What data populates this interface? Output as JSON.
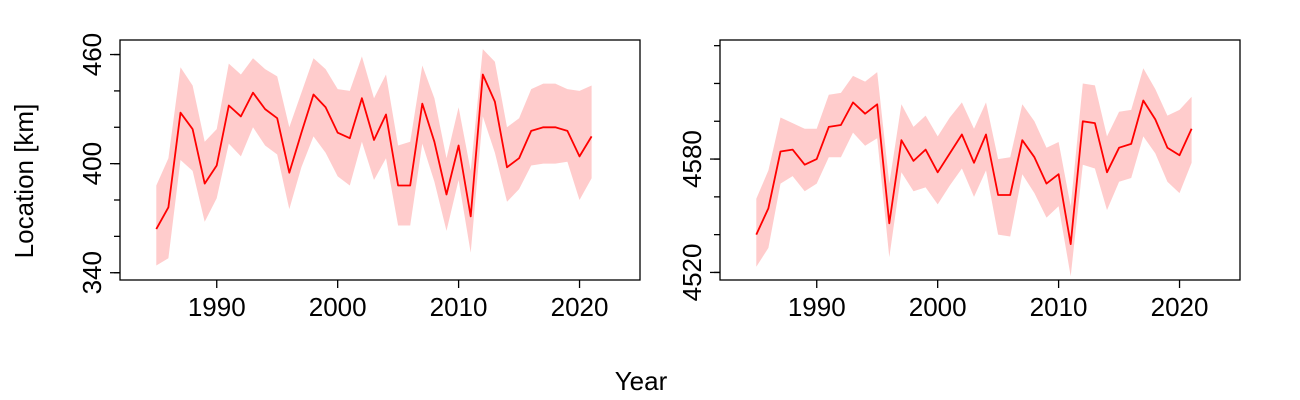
{
  "figure": {
    "ylabel": "Location [km]",
    "xlabel": "Year"
  },
  "colors": {
    "line": "#ff0000",
    "band": "#ffcccc",
    "axis": "#000000"
  },
  "chart_data": [
    {
      "type": "line",
      "x": [
        1985,
        1986,
        1987,
        1988,
        1989,
        1990,
        1991,
        1992,
        1993,
        1994,
        1995,
        1996,
        1997,
        1998,
        1999,
        2000,
        2001,
        2002,
        2003,
        2004,
        2005,
        2006,
        2007,
        2008,
        2009,
        2010,
        2011,
        2012,
        2013,
        2014,
        2015,
        2016,
        2017,
        2018,
        2019,
        2020,
        2021
      ],
      "series": [
        {
          "values": [
            364,
            376,
            428,
            419,
            389,
            399,
            432,
            426,
            439,
            430,
            425,
            395,
            417,
            438,
            431,
            417,
            414,
            436,
            413,
            427,
            388,
            388,
            433,
            412,
            383,
            410,
            371,
            449,
            434,
            398,
            403,
            418,
            420,
            420,
            418,
            404,
            415
          ],
          "lower": [
            344,
            348,
            402,
            396,
            368,
            381,
            411,
            404,
            420,
            410,
            405,
            375,
            398,
            415,
            406,
            393,
            388,
            412,
            391,
            403,
            366,
            366,
            411,
            390,
            363,
            391,
            351,
            426,
            406,
            379,
            386,
            399,
            400,
            400,
            401,
            380,
            392
          ],
          "upper": [
            388,
            403,
            453,
            443,
            412,
            419,
            455,
            449,
            458,
            452,
            448,
            420,
            439,
            458,
            452,
            441,
            440,
            459,
            436,
            449,
            410,
            412,
            454,
            436,
            403,
            431,
            396,
            463,
            456,
            420,
            425,
            441,
            444,
            444,
            441,
            440,
            443
          ]
        }
      ],
      "xlim": [
        1982,
        2025
      ],
      "ylim": [
        336,
        468
      ],
      "xticks": [
        1990,
        2000,
        2010,
        2020
      ],
      "yticks": [
        340,
        400,
        460
      ],
      "yminor": [
        340,
        360,
        380,
        400,
        420,
        440,
        460
      ]
    },
    {
      "type": "line",
      "x": [
        1985,
        1986,
        1987,
        1988,
        1989,
        1990,
        1991,
        1992,
        1993,
        1994,
        1995,
        1996,
        1997,
        1998,
        1999,
        2000,
        2001,
        2002,
        2003,
        2004,
        2005,
        2006,
        2007,
        2008,
        2009,
        2010,
        2011,
        2012,
        2013,
        2014,
        2015,
        2016,
        2017,
        2018,
        2019,
        2020,
        2021
      ],
      "series": [
        {
          "values": [
            4540,
            4554,
            4584,
            4585,
            4577,
            4580,
            4597,
            4598,
            4610,
            4604,
            4609,
            4546,
            4590,
            4579,
            4585,
            4573,
            4583,
            4593,
            4578,
            4593,
            4561,
            4561,
            4590,
            4581,
            4567,
            4572,
            4535,
            4600,
            4599,
            4573,
            4586,
            4588,
            4611,
            4601,
            4586,
            4582,
            4596
          ],
          "lower": [
            4523,
            4533,
            4567,
            4571,
            4563,
            4567,
            4581,
            4581,
            4594,
            4587,
            4591,
            4528,
            4573,
            4563,
            4565,
            4556,
            4566,
            4575,
            4560,
            4574,
            4540,
            4539,
            4572,
            4562,
            4549,
            4555,
            4518,
            4577,
            4575,
            4553,
            4568,
            4570,
            4592,
            4583,
            4568,
            4562,
            4578
          ],
          "upper": [
            4559,
            4574,
            4602,
            4599,
            4596,
            4596,
            4614,
            4615,
            4624,
            4621,
            4626,
            4567,
            4609,
            4597,
            4603,
            4592,
            4602,
            4610,
            4596,
            4610,
            4580,
            4581,
            4609,
            4600,
            4586,
            4589,
            4555,
            4620,
            4619,
            4592,
            4605,
            4606,
            4628,
            4617,
            4603,
            4606,
            4613
          ]
        }
      ],
      "xlim": [
        1982,
        2025
      ],
      "ylim": [
        4516,
        4643
      ],
      "xticks": [
        1990,
        2000,
        2010,
        2020
      ],
      "yticks": [
        4520,
        4580
      ],
      "yminor": [
        4520,
        4540,
        4560,
        4580,
        4600,
        4620,
        4640
      ]
    }
  ]
}
